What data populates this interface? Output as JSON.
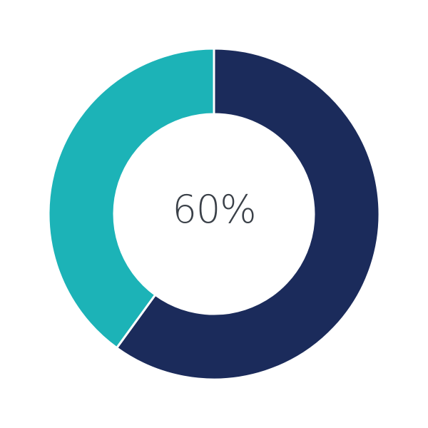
{
  "chart_data": {
    "type": "pie",
    "variant": "donut",
    "center_label": "60%",
    "values": [
      60,
      40
    ],
    "colors": [
      "#1b2b5b",
      "#1cb3b7"
    ],
    "start": "top",
    "direction": "clockwise"
  }
}
